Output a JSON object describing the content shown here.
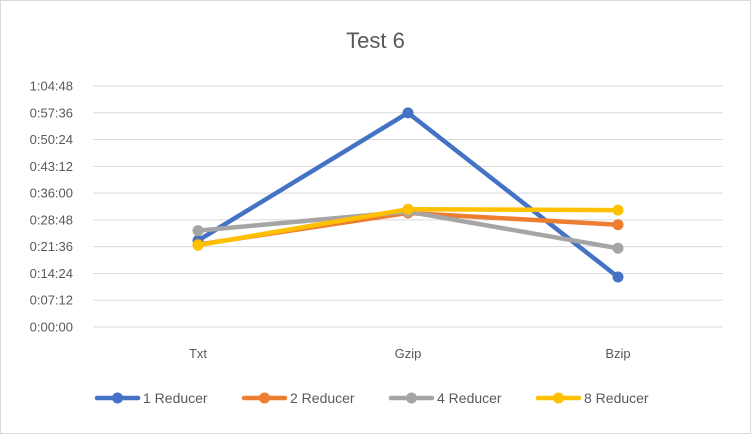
{
  "chart_data": {
    "type": "line",
    "title": "Test 6",
    "xlabel": "",
    "ylabel": "",
    "categories": [
      "Txt",
      "Gzip",
      "Bzip"
    ],
    "y_tick_labels": [
      "0:00:00",
      "0:07:12",
      "0:14:24",
      "0:21:36",
      "0:28:48",
      "0:36:00",
      "0:43:12",
      "0:50:24",
      "0:57:36",
      "1:04:48"
    ],
    "y_ticks_seconds": [
      0,
      432,
      864,
      1296,
      1728,
      2160,
      2592,
      3024,
      3456,
      3888
    ],
    "ylim_seconds": [
      0,
      3888
    ],
    "y_unit": "seconds (displayed as h:mm:ss)",
    "grid": true,
    "legend_position": "bottom",
    "series": [
      {
        "name": "1 Reducer",
        "color": "#4472C4",
        "values": [
          1395,
          3455,
          806
        ]
      },
      {
        "name": "2 Reducer",
        "color": "#ED7D31",
        "values": [
          1330,
          1840,
          1650
        ]
      },
      {
        "name": "4 Reducer",
        "color": "#A5A5A5",
        "values": [
          1555,
          1860,
          1270
        ]
      },
      {
        "name": "8 Reducer",
        "color": "#FFC000",
        "values": [
          1320,
          1900,
          1885
        ]
      }
    ]
  }
}
